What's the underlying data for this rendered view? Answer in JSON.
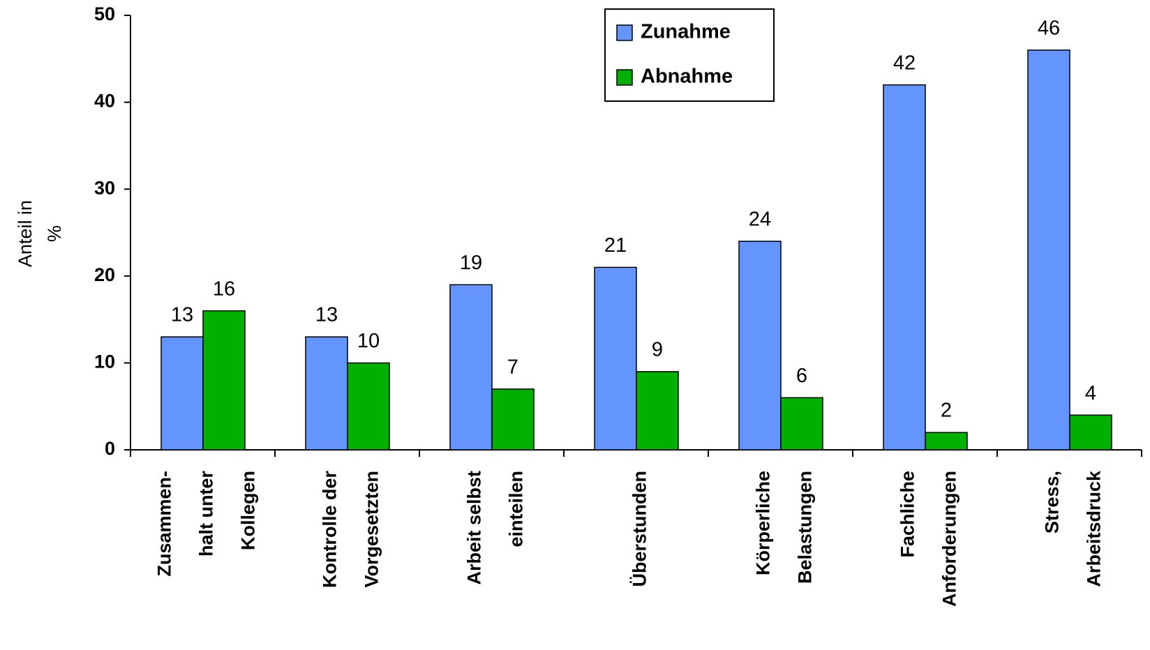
{
  "chart_data": {
    "type": "bar",
    "ylabel": [
      "Anteil in",
      "%"
    ],
    "categories": [
      [
        "Zusammen-",
        "halt unter",
        "Kollegen"
      ],
      [
        "Kontrolle der",
        "Vorgesetzten"
      ],
      [
        "Arbeit selbst",
        "einteilen"
      ],
      [
        "Überstunden"
      ],
      [
        "Körperliche",
        "Belastungen"
      ],
      [
        "Fachliche",
        "Anforderungen"
      ],
      [
        "Stress,",
        "Arbeitsdruck"
      ]
    ],
    "series": [
      {
        "name": "Zunahme",
        "color": "#6495ff",
        "values": [
          13,
          13,
          19,
          21,
          24,
          42,
          46
        ]
      },
      {
        "name": "Abnahme",
        "color": "#00b000",
        "values": [
          16,
          10,
          7,
          9,
          6,
          2,
          4
        ]
      }
    ],
    "ylim": [
      0,
      50
    ],
    "yticks": [
      0,
      10,
      20,
      30,
      40,
      50
    ],
    "grid": false,
    "legend": "top"
  }
}
